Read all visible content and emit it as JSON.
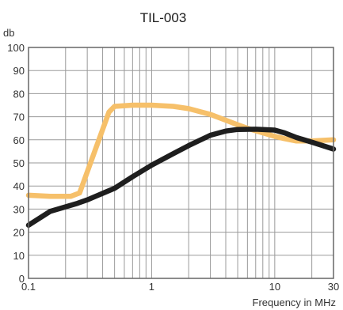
{
  "chart_data": {
    "type": "line",
    "title": "TIL-003",
    "ylabel": "db",
    "xlabel": "Frequency in MHz",
    "x_scale": "log",
    "xlim": [
      0.1,
      30
    ],
    "ylim": [
      0,
      100
    ],
    "grid": true,
    "legend": "none",
    "y_ticks": [
      0,
      10,
      20,
      30,
      40,
      50,
      60,
      70,
      80,
      90,
      100
    ],
    "x_tick_labels": [
      {
        "value": 0.1,
        "label": "0.1"
      },
      {
        "value": 1,
        "label": "1"
      },
      {
        "value": 10,
        "label": "10"
      },
      {
        "value": 30,
        "label": "30"
      }
    ],
    "x_gridlines": [
      0.1,
      0.2,
      0.3,
      0.4,
      0.5,
      0.6,
      0.7,
      0.8,
      0.9,
      1,
      2,
      3,
      4,
      5,
      6,
      7,
      8,
      9,
      10,
      20,
      30
    ],
    "series": [
      {
        "color": "#f6c06a",
        "points": [
          [
            0.1,
            36
          ],
          [
            0.15,
            35.5
          ],
          [
            0.22,
            35.5
          ],
          [
            0.26,
            37
          ],
          [
            0.35,
            56
          ],
          [
            0.45,
            72
          ],
          [
            0.5,
            74.5
          ],
          [
            0.7,
            75
          ],
          [
            1,
            75
          ],
          [
            1.5,
            74.5
          ],
          [
            2,
            73.5
          ],
          [
            3,
            71
          ],
          [
            4,
            68.5
          ],
          [
            5,
            66.5
          ],
          [
            6,
            65
          ],
          [
            8,
            63
          ],
          [
            10,
            61.5
          ],
          [
            12,
            60.5
          ],
          [
            15,
            59.5
          ],
          [
            20,
            59.5
          ],
          [
            30,
            60
          ]
        ]
      },
      {
        "color": "#1e1e1e",
        "points": [
          [
            0.1,
            23
          ],
          [
            0.15,
            29
          ],
          [
            0.25,
            32.5
          ],
          [
            0.3,
            34
          ],
          [
            0.5,
            39
          ],
          [
            0.7,
            44
          ],
          [
            1,
            49
          ],
          [
            1.5,
            54
          ],
          [
            2,
            57.5
          ],
          [
            3,
            62
          ],
          [
            4,
            63.8
          ],
          [
            5,
            64.5
          ],
          [
            7,
            64.6
          ],
          [
            10,
            64.2
          ],
          [
            12,
            63
          ],
          [
            15,
            61
          ],
          [
            20,
            59
          ],
          [
            30,
            56
          ]
        ]
      }
    ]
  }
}
